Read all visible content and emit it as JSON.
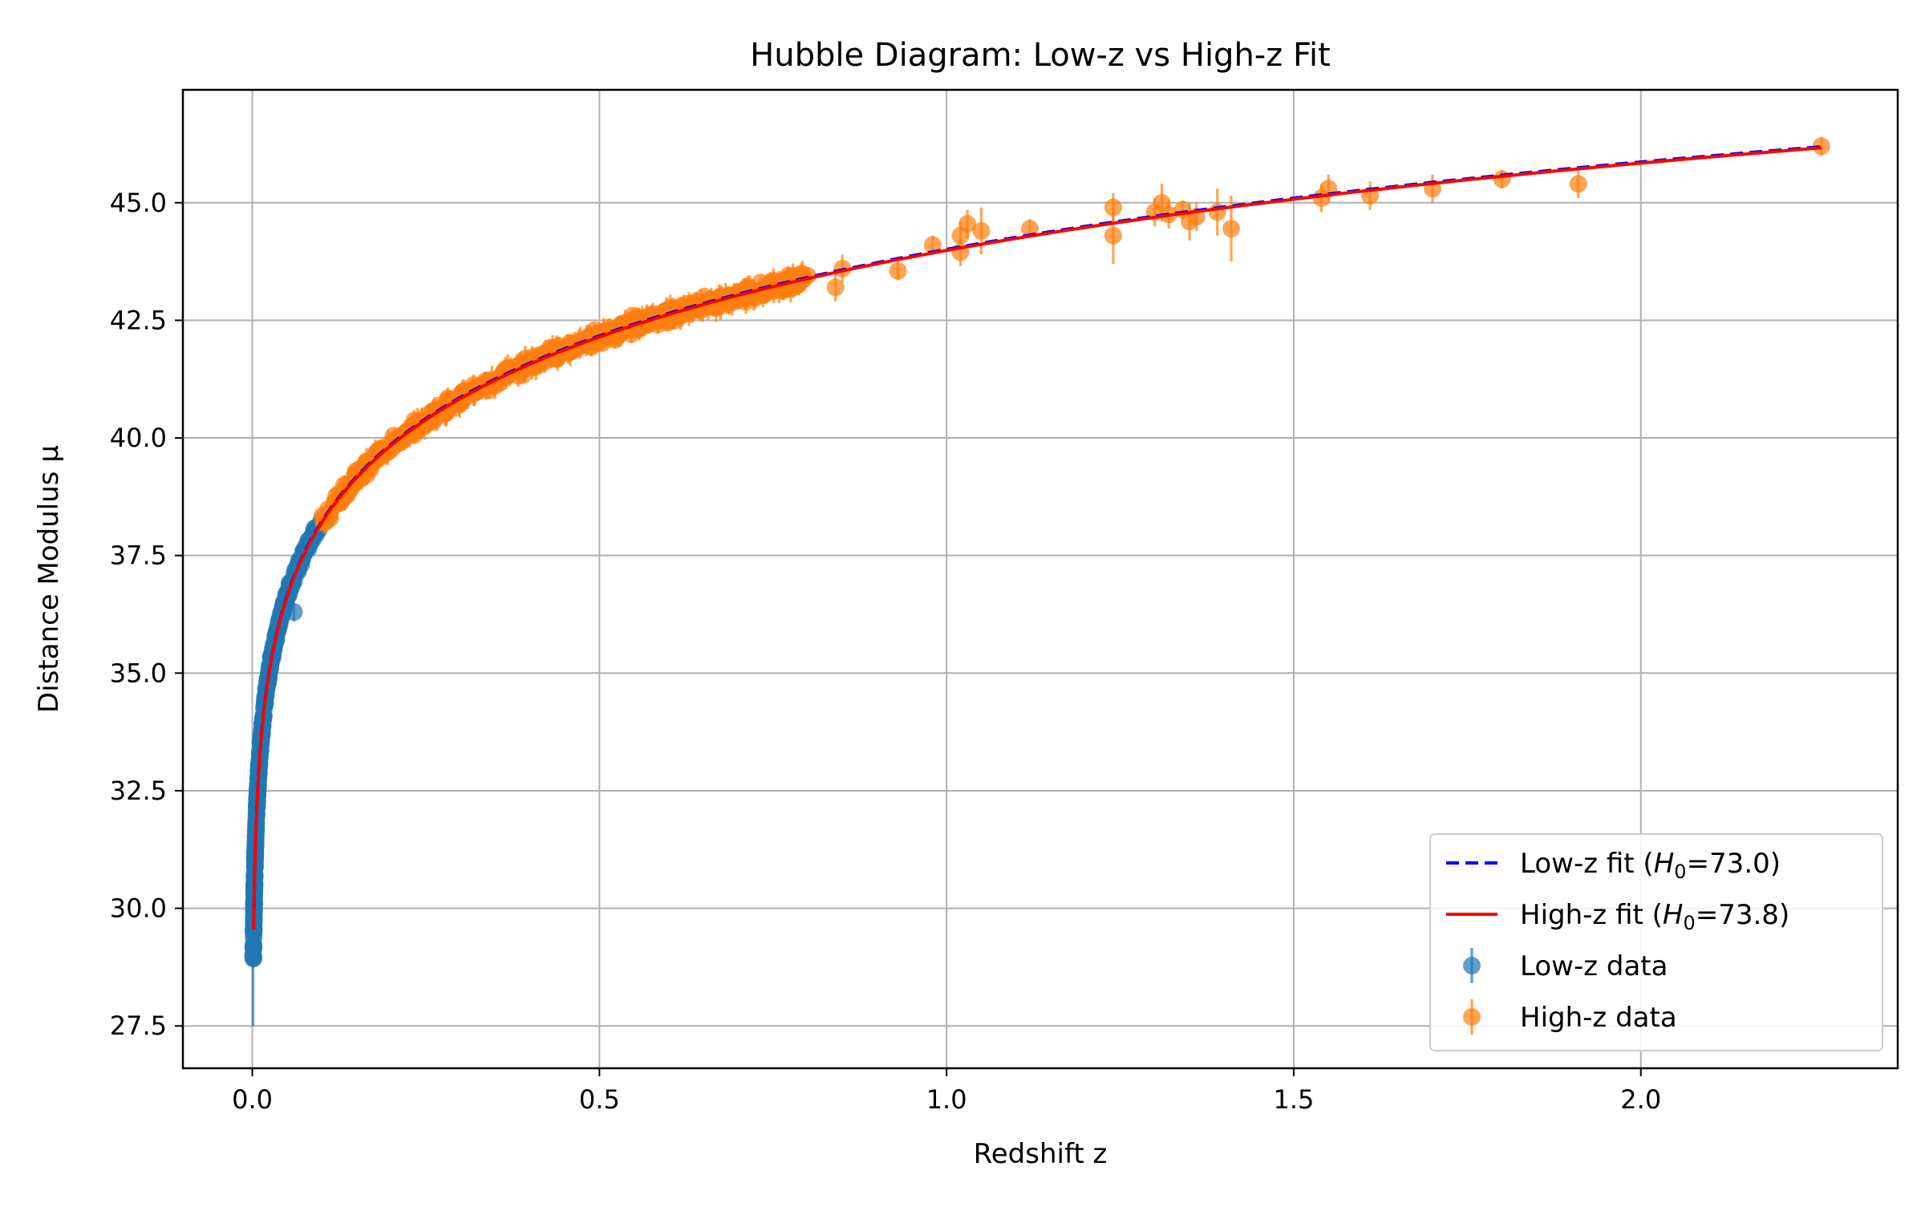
{
  "chart_data": {
    "type": "scatter",
    "title": "Hubble Diagram: Low-z vs High-z Fit",
    "xlabel": "Redshift z",
    "ylabel": "Distance Modulus μ",
    "xlim": [
      -0.1,
      2.37
    ],
    "ylim": [
      26.6,
      47.4
    ],
    "x_ticks": [
      0.0,
      0.5,
      1.0,
      1.5,
      2.0
    ],
    "x_tick_labels": [
      "0.0",
      "0.5",
      "1.0",
      "1.5",
      "2.0"
    ],
    "y_ticks": [
      27.5,
      30.0,
      32.5,
      35.0,
      37.5,
      40.0,
      42.5,
      45.0
    ],
    "y_tick_labels": [
      "27.5",
      "30.0",
      "32.5",
      "35.0",
      "37.5",
      "40.0",
      "42.5",
      "45.0"
    ],
    "grid": true,
    "legend_position": "lower-right",
    "legend": [
      {
        "kind": "dashed-line",
        "color": "#0000ff",
        "text_pre": "Low-z fit (",
        "h": "H",
        "sub": "0",
        "text_post": "=73.0)"
      },
      {
        "kind": "solid-line",
        "color": "#ff0000",
        "text_pre": "High-z fit (",
        "h": "H",
        "sub": "0",
        "text_post": "=73.8)"
      },
      {
        "kind": "marker",
        "color": "#1f77b4",
        "text_pre": "Low-z data",
        "h": "",
        "sub": "",
        "text_post": ""
      },
      {
        "kind": "marker",
        "color": "#ff7f0e",
        "text_pre": "High-z data",
        "h": "",
        "sub": "",
        "text_post": ""
      }
    ],
    "fits": [
      {
        "name": "Low-z fit",
        "H0": 73.0,
        "color": "#0000ff",
        "style": "dashed",
        "z_range": [
          0.002,
          2.26
        ]
      },
      {
        "name": "High-z fit",
        "H0": 73.8,
        "color": "#ff0000",
        "style": "solid",
        "z_range": [
          0.002,
          2.26
        ]
      }
    ],
    "series": [
      {
        "name": "Low-z data",
        "color": "#1f77b4",
        "z_range": [
          0.0015,
          0.1
        ],
        "H0_model": 73.0,
        "approx_point_count": 400,
        "typical_error": 0.15,
        "extra_points": [
          {
            "x": 0.001,
            "y": 29.0,
            "err": 1.5
          },
          {
            "x": 0.06,
            "y": 36.3,
            "err": 0.2
          }
        ]
      },
      {
        "name": "High-z data",
        "color": "#ff7f0e",
        "z_range": [
          0.1,
          0.8
        ],
        "H0_model": 73.8,
        "approx_point_count": 600,
        "typical_error": 0.2,
        "points": [
          {
            "x": 0.84,
            "y": 43.2,
            "err": 0.3
          },
          {
            "x": 0.85,
            "y": 43.6,
            "err": 0.3
          },
          {
            "x": 0.93,
            "y": 43.55,
            "err": 0.2
          },
          {
            "x": 0.98,
            "y": 44.1,
            "err": 0.2
          },
          {
            "x": 1.02,
            "y": 44.3,
            "err": 0.3
          },
          {
            "x": 1.02,
            "y": 43.95,
            "err": 0.3
          },
          {
            "x": 1.03,
            "y": 44.55,
            "err": 0.3
          },
          {
            "x": 1.05,
            "y": 44.4,
            "err": 0.5
          },
          {
            "x": 1.12,
            "y": 44.45,
            "err": 0.2
          },
          {
            "x": 1.24,
            "y": 44.3,
            "err": 0.6
          },
          {
            "x": 1.24,
            "y": 44.9,
            "err": 0.3
          },
          {
            "x": 1.3,
            "y": 44.8,
            "err": 0.3
          },
          {
            "x": 1.31,
            "y": 45.0,
            "err": 0.4
          },
          {
            "x": 1.32,
            "y": 44.75,
            "err": 0.3
          },
          {
            "x": 1.34,
            "y": 44.85,
            "err": 0.2
          },
          {
            "x": 1.35,
            "y": 44.6,
            "err": 0.4
          },
          {
            "x": 1.36,
            "y": 44.7,
            "err": 0.3
          },
          {
            "x": 1.39,
            "y": 44.8,
            "err": 0.5
          },
          {
            "x": 1.41,
            "y": 44.45,
            "err": 0.7
          },
          {
            "x": 1.54,
            "y": 45.1,
            "err": 0.3
          },
          {
            "x": 1.55,
            "y": 45.3,
            "err": 0.3
          },
          {
            "x": 1.61,
            "y": 45.15,
            "err": 0.3
          },
          {
            "x": 1.7,
            "y": 45.3,
            "err": 0.3
          },
          {
            "x": 1.8,
            "y": 45.5,
            "err": 0.2
          },
          {
            "x": 1.91,
            "y": 45.4,
            "err": 0.3
          },
          {
            "x": 2.26,
            "y": 46.2,
            "err": 0.2
          }
        ]
      }
    ]
  }
}
